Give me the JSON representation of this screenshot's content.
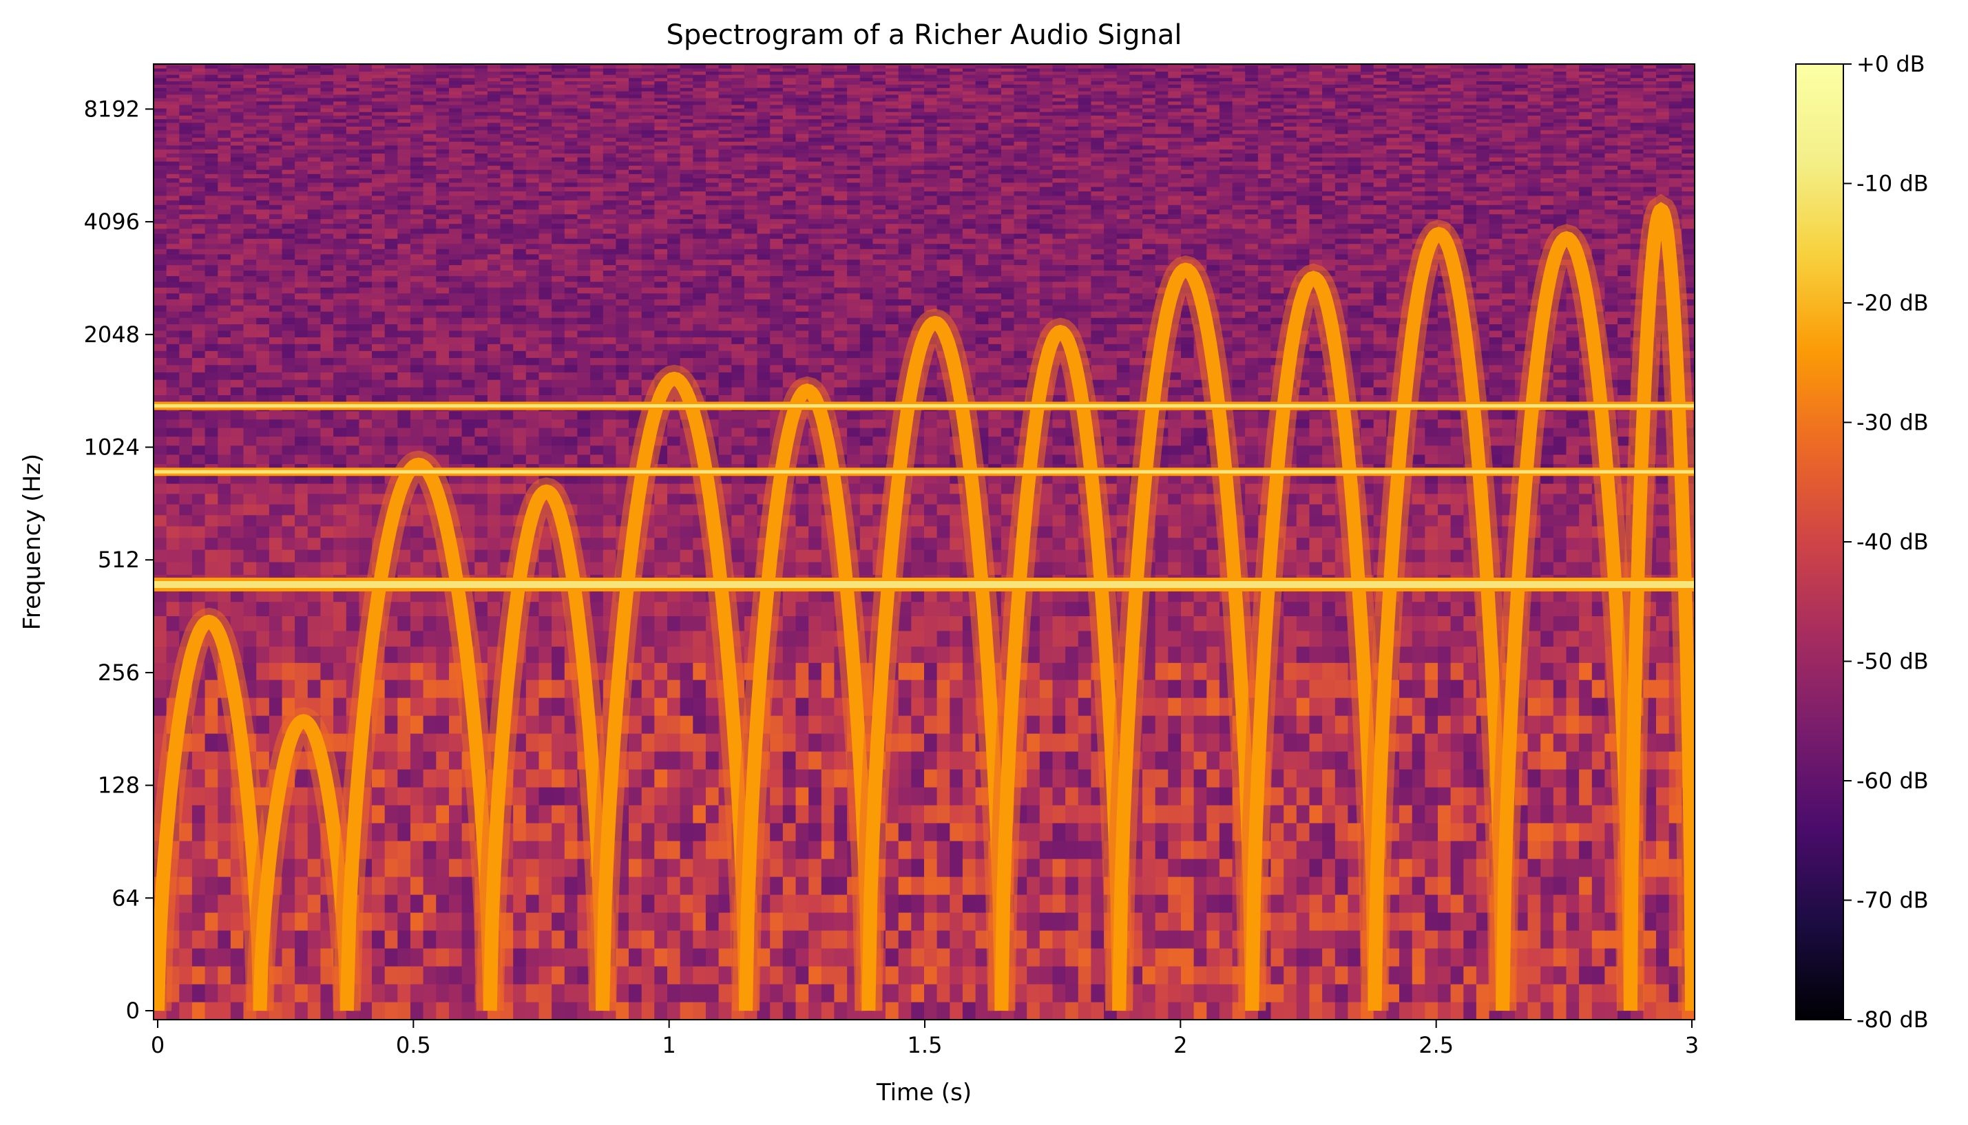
{
  "chart_data": {
    "type": "heatmap",
    "title": "Spectrogram of a Richer Audio Signal",
    "xlabel": "Time (s)",
    "ylabel": "Frequency (Hz)",
    "x_range": [
      0,
      3
    ],
    "x_ticks": [
      {
        "value": 0,
        "label": "0"
      },
      {
        "value": 0.5,
        "label": "0.5"
      },
      {
        "value": 1,
        "label": "1"
      },
      {
        "value": 1.5,
        "label": "1.5"
      },
      {
        "value": 2,
        "label": "2"
      },
      {
        "value": 2.5,
        "label": "2.5"
      },
      {
        "value": 3,
        "label": "3"
      }
    ],
    "y_scale": "log2",
    "y_range_hz": [
      0,
      11025
    ],
    "y_ticks": [
      {
        "value": 0,
        "label": "0"
      },
      {
        "value": 64,
        "label": "64"
      },
      {
        "value": 128,
        "label": "128"
      },
      {
        "value": 256,
        "label": "256"
      },
      {
        "value": 512,
        "label": "512"
      },
      {
        "value": 1024,
        "label": "1024"
      },
      {
        "value": 2048,
        "label": "2048"
      },
      {
        "value": 4096,
        "label": "4096"
      },
      {
        "value": 8192,
        "label": "8192"
      }
    ],
    "colormap": "inferno",
    "colorbar": {
      "range_db": [
        -80,
        0
      ],
      "ticks": [
        {
          "value": 0,
          "label": "+0 dB"
        },
        {
          "value": -10,
          "label": "-10 dB"
        },
        {
          "value": -20,
          "label": "-20 dB"
        },
        {
          "value": -30,
          "label": "-30 dB"
        },
        {
          "value": -40,
          "label": "-40 dB"
        },
        {
          "value": -50,
          "label": "-50 dB"
        },
        {
          "value": -60,
          "label": "-60 dB"
        },
        {
          "value": -70,
          "label": "-70 dB"
        },
        {
          "value": -80,
          "label": "-80 dB"
        }
      ]
    },
    "tones_hz": [
      440,
      880,
      1320
    ],
    "chirp_arcs": [
      {
        "t_start": 0.0,
        "t_end": 0.2,
        "peak_hz": 350
      },
      {
        "t_start": 0.2,
        "t_end": 0.37,
        "peak_hz": 190
      },
      {
        "t_start": 0.37,
        "t_end": 0.65,
        "peak_hz": 920
      },
      {
        "t_start": 0.65,
        "t_end": 0.87,
        "peak_hz": 780
      },
      {
        "t_start": 0.87,
        "t_end": 1.15,
        "peak_hz": 1560
      },
      {
        "t_start": 1.15,
        "t_end": 1.39,
        "peak_hz": 1450
      },
      {
        "t_start": 1.39,
        "t_end": 1.65,
        "peak_hz": 2200
      },
      {
        "t_start": 1.65,
        "t_end": 1.88,
        "peak_hz": 2080
      },
      {
        "t_start": 1.88,
        "t_end": 2.14,
        "peak_hz": 3050
      },
      {
        "t_start": 2.14,
        "t_end": 2.38,
        "peak_hz": 2900
      },
      {
        "t_start": 2.38,
        "t_end": 2.63,
        "peak_hz": 3800
      },
      {
        "t_start": 2.63,
        "t_end": 2.88,
        "peak_hz": 3700
      },
      {
        "t_start": 2.88,
        "t_end": 3.0,
        "peak_hz": 4400
      }
    ],
    "grid": false,
    "legend": "none"
  }
}
